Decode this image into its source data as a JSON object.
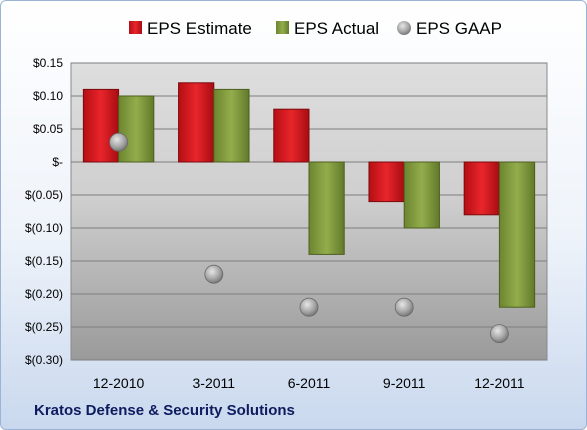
{
  "footer": {
    "company": "Kratos Defense & Security Solutions"
  },
  "colors": {
    "estimate": "#d4171e",
    "actual": "#7f9a3c",
    "gaap": "#a9a9a9",
    "footer_text": "#0d1c5e"
  },
  "chart_data": {
    "type": "bar",
    "title": "",
    "xlabel": "",
    "ylabel": "",
    "categories": [
      "12-2010",
      "3-2011",
      "6-2011",
      "9-2011",
      "12-2011"
    ],
    "ylim": [
      -0.3,
      0.15
    ],
    "yticks": [
      0.15,
      0.1,
      0.05,
      0,
      -0.05,
      -0.1,
      -0.15,
      -0.2,
      -0.25,
      -0.3
    ],
    "ytick_labels": [
      "$0.15",
      "$0.10",
      "$0.05",
      "$-",
      "$(0.05)",
      "$(0.10)",
      "$(0.15)",
      "$(0.20)",
      "$(0.25)",
      "$(0.30)"
    ],
    "grid": true,
    "legend_position": "top",
    "series": [
      {
        "name": "EPS Estimate",
        "kind": "bar",
        "values": [
          0.11,
          0.12,
          0.08,
          -0.06,
          -0.08
        ]
      },
      {
        "name": "EPS Actual",
        "kind": "bar",
        "values": [
          0.1,
          0.11,
          -0.14,
          -0.1,
          -0.22
        ]
      },
      {
        "name": "EPS GAAP",
        "kind": "marker",
        "values": [
          0.03,
          -0.17,
          -0.22,
          -0.22,
          -0.26
        ]
      }
    ]
  }
}
